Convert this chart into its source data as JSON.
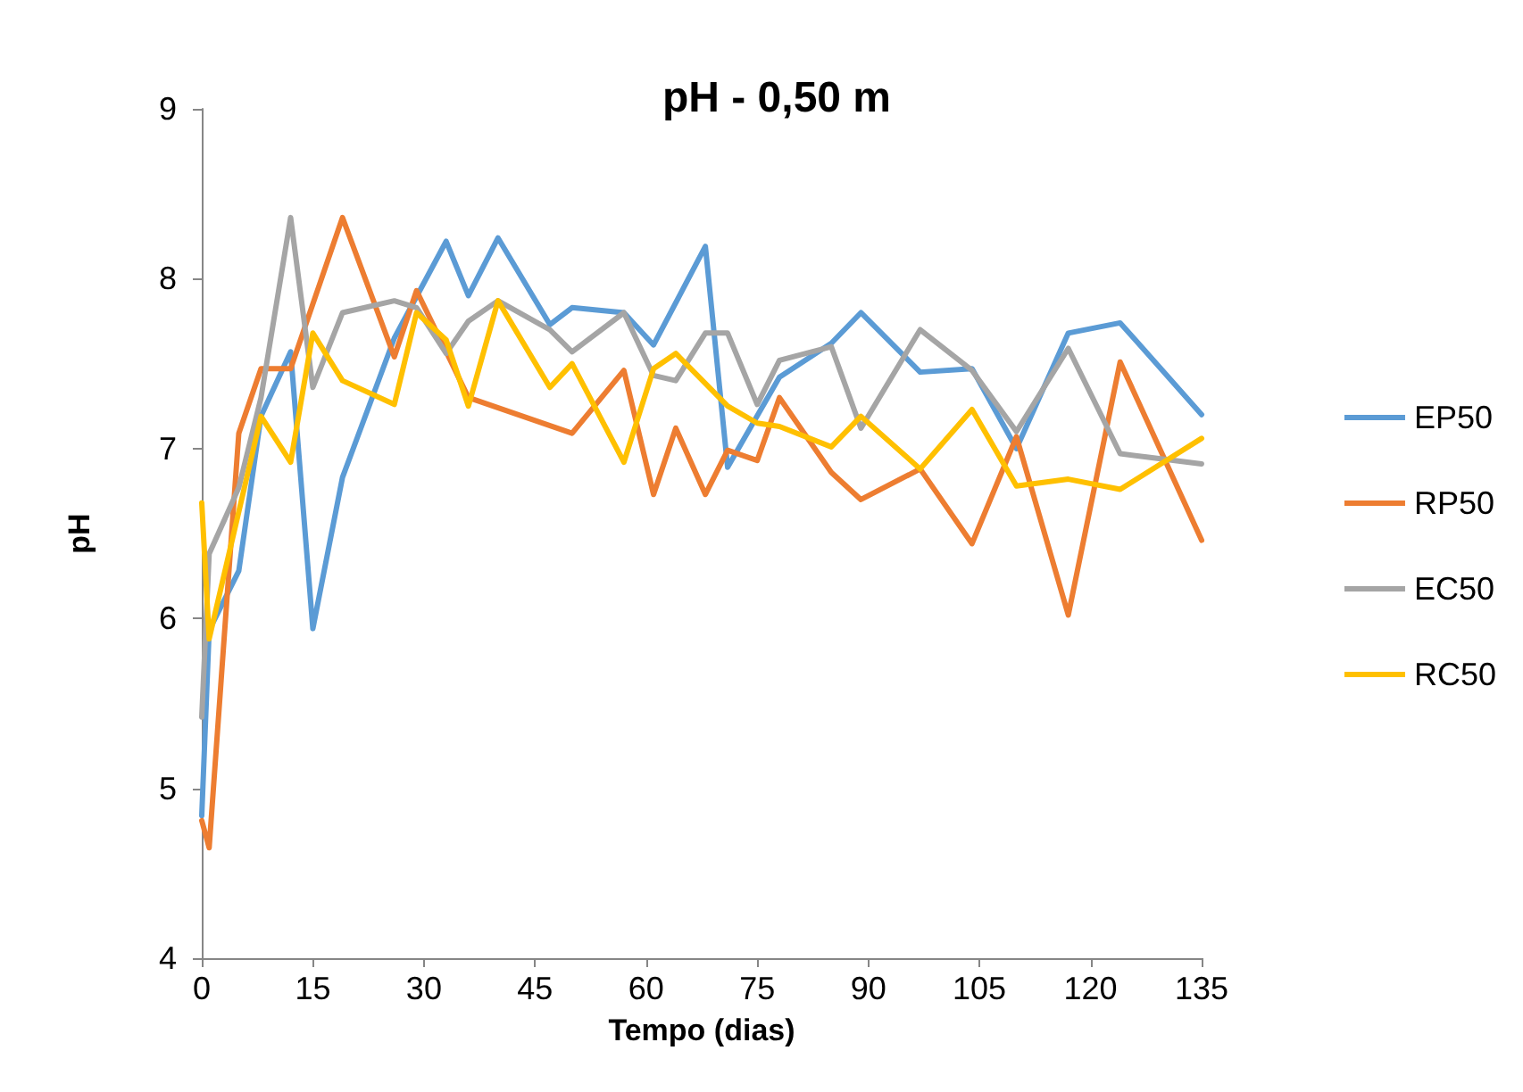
{
  "chart_data": {
    "type": "line",
    "title": "pH - 0,50 m",
    "xlabel": "Tempo (dias)",
    "ylabel": "pH",
    "xlim": [
      0,
      135
    ],
    "xticks": [
      0,
      15,
      30,
      45,
      60,
      75,
      90,
      105,
      120,
      135
    ],
    "ylim": [
      4,
      9
    ],
    "yticks": [
      4,
      5,
      6,
      7,
      8,
      9
    ],
    "grid": false,
    "legend": "right",
    "marker": "none",
    "line_style": "solid",
    "series": [
      {
        "name": "EP50",
        "color": "#5b9bd5",
        "x": [
          0,
          1,
          5,
          8,
          12,
          15,
          19,
          26,
          33,
          36,
          40,
          47,
          50,
          57,
          61,
          68,
          71,
          78,
          85,
          89,
          97,
          104,
          110,
          117,
          124,
          135
        ],
        "values": [
          4.84,
          5.93,
          6.28,
          7.19,
          7.57,
          5.94,
          6.83,
          7.65,
          8.22,
          7.9,
          8.24,
          7.73,
          7.83,
          7.8,
          7.61,
          8.19,
          6.89,
          7.42,
          7.62,
          7.8,
          7.45,
          7.47,
          7.0,
          7.68,
          7.74,
          7.2
        ]
      },
      {
        "name": "RP50",
        "color": "#ed7d31",
        "x": [
          0,
          1,
          5,
          8,
          12,
          19,
          26,
          29,
          36,
          50,
          57,
          61,
          64,
          68,
          71,
          75,
          78,
          85,
          89,
          97,
          104,
          110,
          117,
          124,
          135
        ],
        "values": [
          4.81,
          4.65,
          7.09,
          7.47,
          7.47,
          8.36,
          7.54,
          7.93,
          7.3,
          7.09,
          7.46,
          6.73,
          7.12,
          6.73,
          6.99,
          6.93,
          7.3,
          6.86,
          6.7,
          6.88,
          6.44,
          7.07,
          6.02,
          7.51,
          6.46
        ]
      },
      {
        "name": "EC50",
        "color": "#a5a5a5",
        "x": [
          0,
          1,
          5,
          8,
          12,
          15,
          19,
          26,
          29,
          33,
          36,
          40,
          47,
          50,
          57,
          61,
          64,
          68,
          71,
          75,
          78,
          85,
          89,
          97,
          104,
          110,
          117,
          124,
          135
        ],
        "values": [
          5.42,
          6.38,
          6.77,
          7.3,
          8.36,
          7.36,
          7.8,
          7.87,
          7.83,
          7.56,
          7.75,
          7.87,
          7.7,
          7.57,
          7.8,
          7.43,
          7.4,
          7.68,
          7.68,
          7.26,
          7.52,
          7.6,
          7.12,
          7.7,
          7.46,
          7.1,
          7.59,
          6.97,
          6.91
        ]
      },
      {
        "name": "RC50",
        "color": "#ffc000",
        "x": [
          0,
          1,
          8,
          12,
          15,
          19,
          26,
          29,
          33,
          36,
          40,
          47,
          50,
          57,
          61,
          64,
          71,
          75,
          78,
          85,
          89,
          97,
          104,
          110,
          117,
          124,
          135
        ],
        "values": [
          6.68,
          5.88,
          7.19,
          6.92,
          7.68,
          7.4,
          7.26,
          7.8,
          7.64,
          7.25,
          7.87,
          7.36,
          7.5,
          6.92,
          7.47,
          7.56,
          7.25,
          7.15,
          7.13,
          7.01,
          7.19,
          6.88,
          7.23,
          6.78,
          6.82,
          6.76,
          7.06
        ]
      }
    ]
  }
}
